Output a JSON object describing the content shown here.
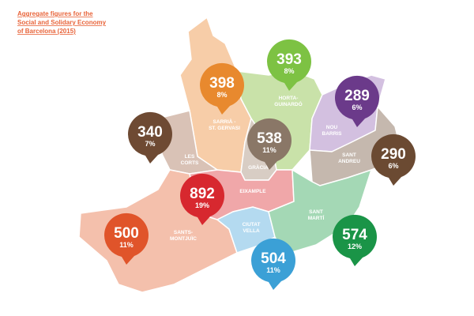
{
  "title": [
    "Aggregate figures for the",
    "Social and Solidary Economy",
    "of Barcelona (2015)"
  ],
  "districts": [
    {
      "name": [
        "SARRIÀ -",
        "ST. GERVASI"
      ],
      "count": 398,
      "share": "8%"
    },
    {
      "name": [
        "HORTA-",
        "GUINARDÓ"
      ],
      "count": 393,
      "share": "8%"
    },
    {
      "name": [
        "NOU",
        "BARRIS"
      ],
      "count": 289,
      "share": "6%"
    },
    {
      "name": [
        "LES",
        "CORTS"
      ],
      "count": 340,
      "share": "7%"
    },
    {
      "name": [
        "GRÀCIA"
      ],
      "count": 538,
      "share": "11%"
    },
    {
      "name": [
        "SANT",
        "ANDREU"
      ],
      "count": 290,
      "share": "6%"
    },
    {
      "name": [
        "EIXAMPLE"
      ],
      "count": 892,
      "share": "19%"
    },
    {
      "name": [
        "SANTS-",
        "MONTJUÏC"
      ],
      "count": 500,
      "share": "11%"
    },
    {
      "name": [
        "CIUTAT",
        "VELLA"
      ],
      "count": 504,
      "share": "11%"
    },
    {
      "name": [
        "SANT",
        "MARTÍ"
      ],
      "count": 574,
      "share": "12%"
    }
  ]
}
